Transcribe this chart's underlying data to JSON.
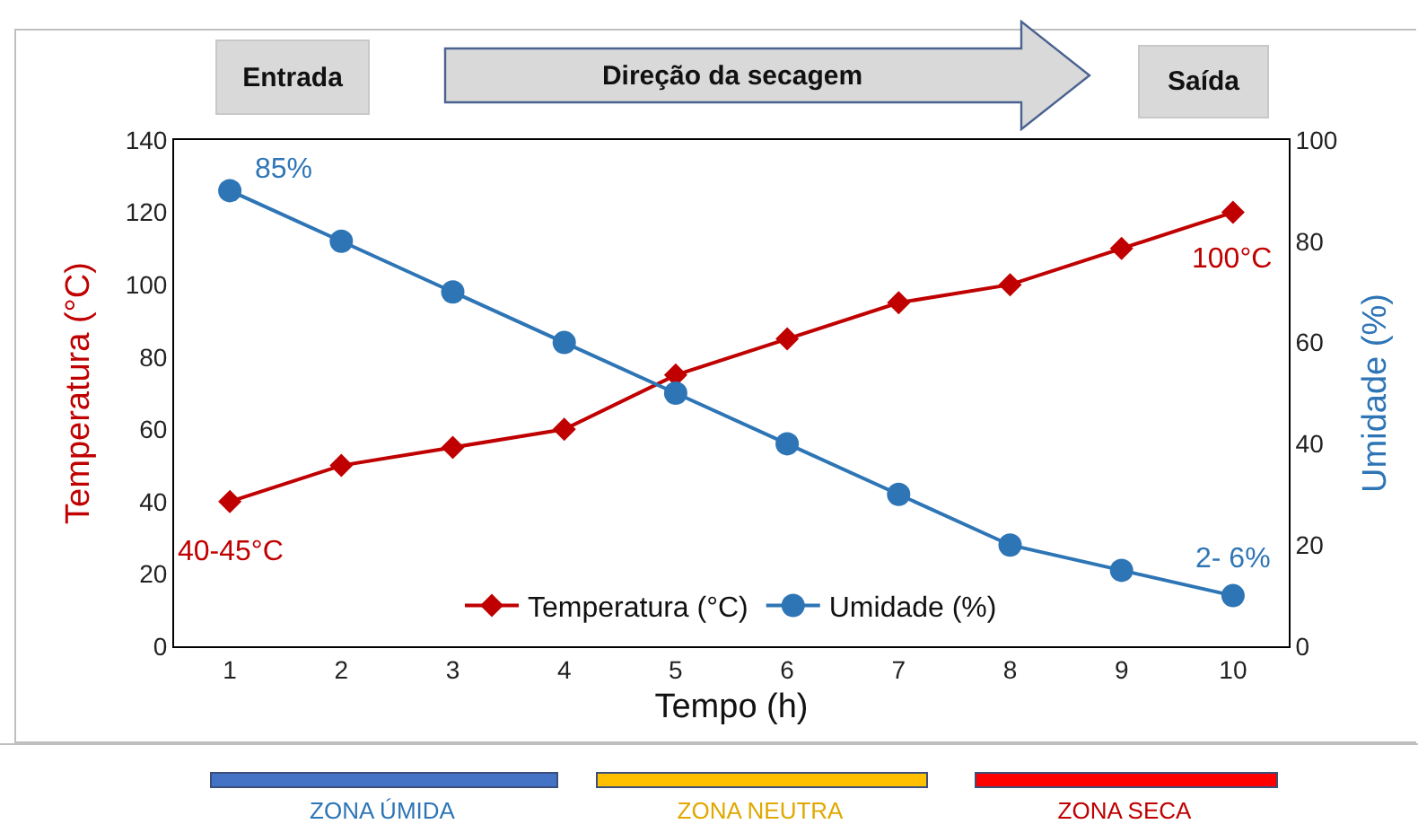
{
  "chart_data": {
    "type": "line",
    "xlabel": "Tempo (h)",
    "ylabel": "Temperatura (°C)",
    "y2label": "Umidade (%)",
    "x": [
      1,
      2,
      3,
      4,
      5,
      6,
      7,
      8,
      9,
      10
    ],
    "series": [
      {
        "name": "Temperatura (°C)",
        "color": "#c00000",
        "marker": "diamond",
        "values": [
          40,
          50,
          55,
          60,
          75,
          85,
          95,
          100,
          110,
          120
        ]
      },
      {
        "name": "Umidade (%)",
        "color": "#2e75b6",
        "marker": "circle",
        "axis": "y2",
        "values": [
          90,
          80,
          70,
          60,
          50,
          40,
          30,
          20,
          15,
          10
        ]
      }
    ],
    "xlim": [
      0.5,
      10.5
    ],
    "xticks": [
      1,
      2,
      3,
      4,
      5,
      6,
      7,
      8,
      9,
      10
    ],
    "ylim": [
      0,
      140
    ],
    "yticks": [
      0,
      20,
      40,
      60,
      80,
      100,
      120,
      140
    ],
    "y2lim": [
      0,
      100
    ],
    "y2ticks": [
      0,
      20,
      40,
      60,
      80,
      100
    ],
    "grid": false,
    "legend": "bottom",
    "line_style": "solid",
    "annotations": [
      "85%",
      "40-45°C",
      "100°C",
      "2- 6%",
      "Entrada",
      "Direção da secagem",
      "Saída",
      "ZONA ÚMIDA",
      "ZONA NEUTRA",
      "ZONA SECA"
    ]
  }
}
